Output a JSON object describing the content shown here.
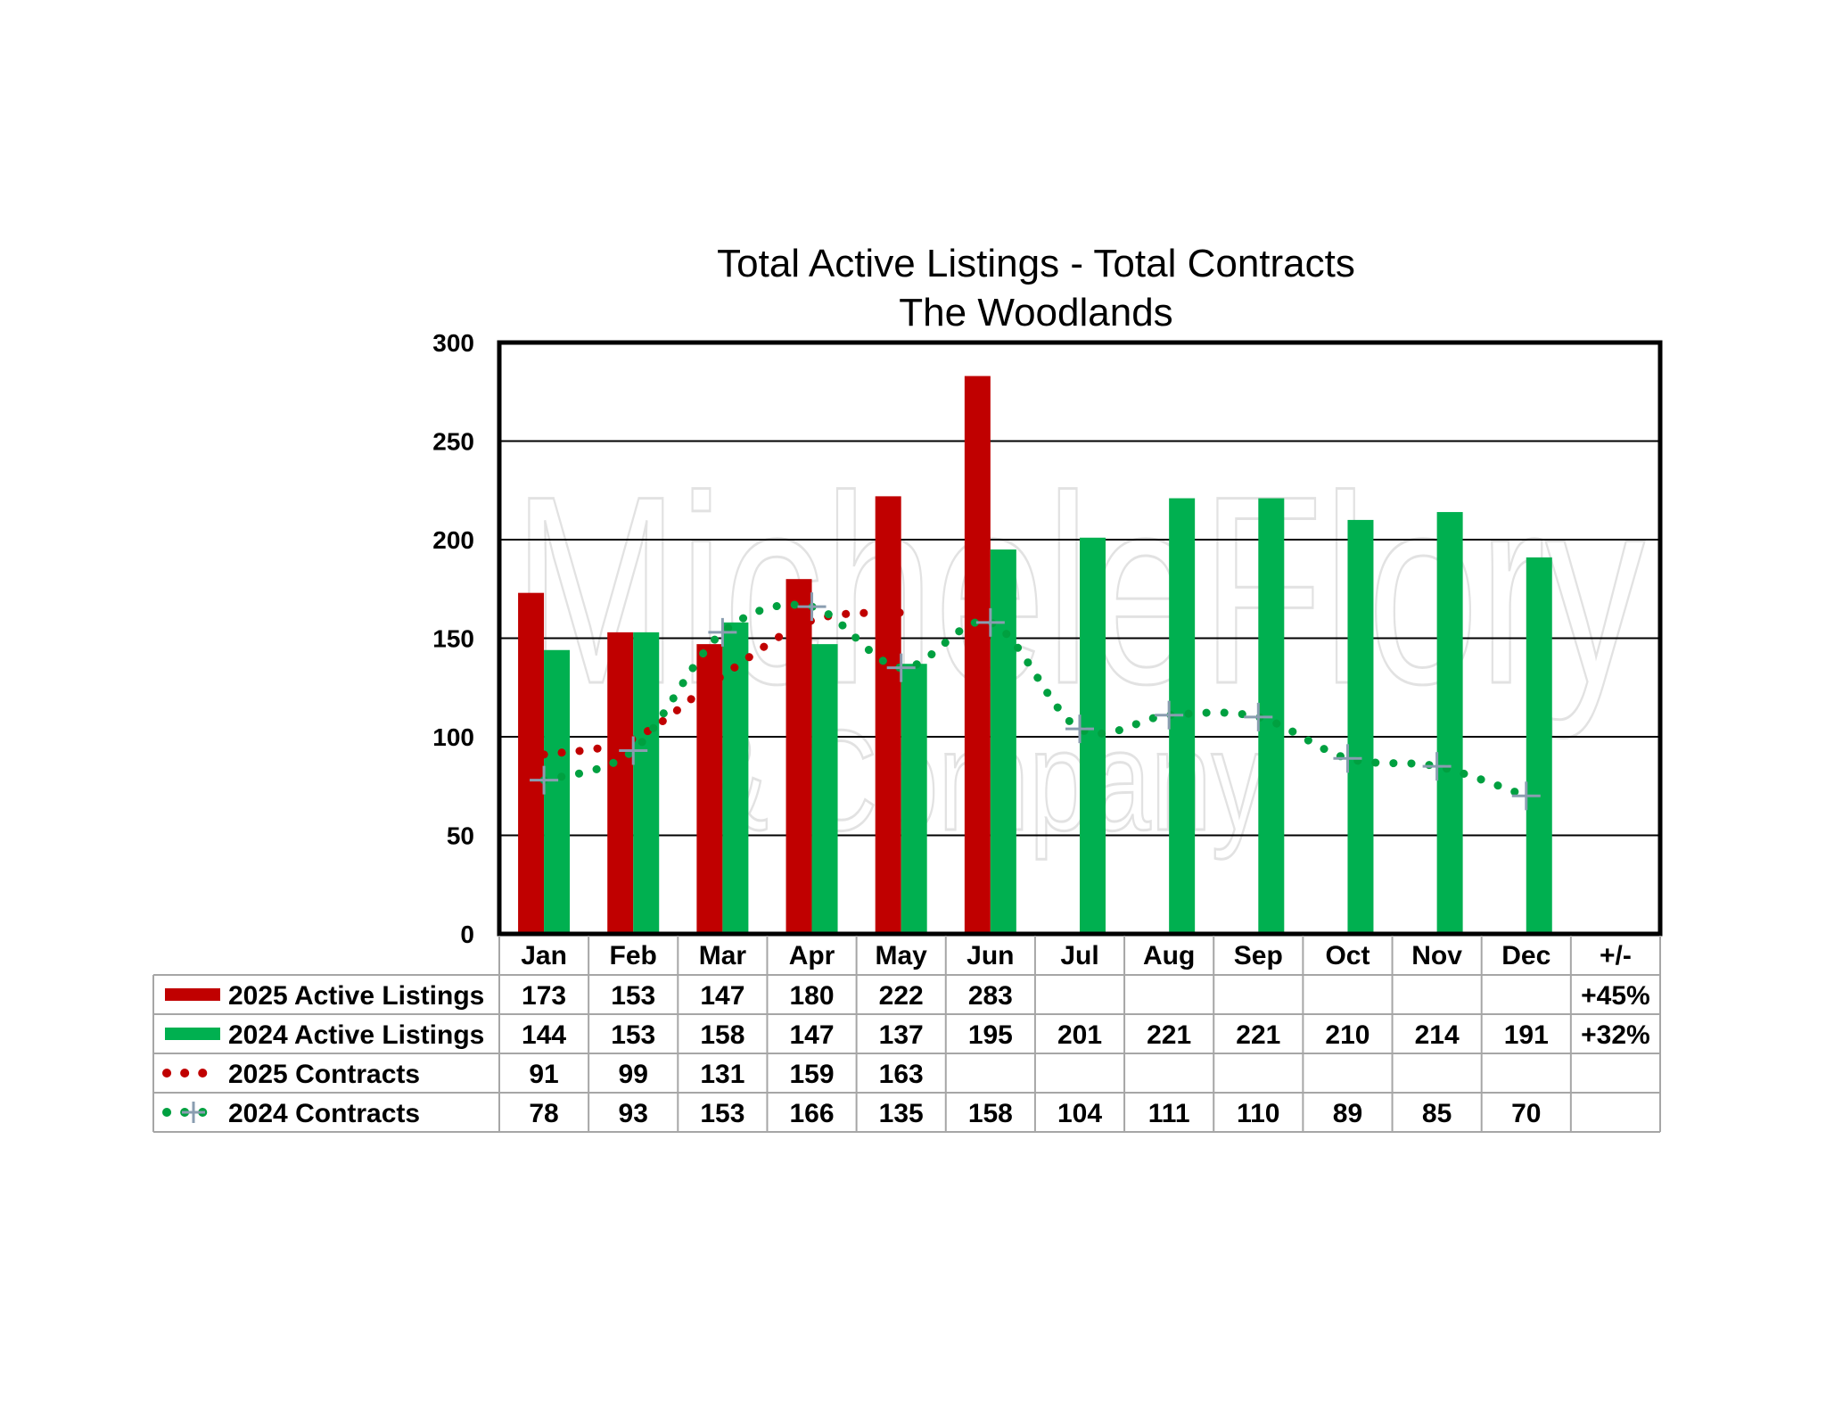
{
  "chart_data": {
    "type": "bar",
    "title": "Total Active Listings - Total Contracts",
    "subtitle": "The Woodlands",
    "categories": [
      "Jan",
      "Feb",
      "Mar",
      "Apr",
      "May",
      "Jun",
      "Jul",
      "Aug",
      "Sep",
      "Oct",
      "Nov",
      "Dec"
    ],
    "extra_column": "+/-",
    "ylim": [
      0,
      300
    ],
    "yticks": [
      0,
      50,
      100,
      150,
      200,
      250,
      300
    ],
    "grid": true,
    "series": [
      {
        "name": "2025 Active Listings",
        "kind": "bar",
        "color": "#c00000",
        "values": [
          173,
          153,
          147,
          180,
          222,
          283,
          null,
          null,
          null,
          null,
          null,
          null
        ],
        "change": "+45%"
      },
      {
        "name": "2024 Active Listings",
        "kind": "bar",
        "color": "#00b050",
        "values": [
          144,
          153,
          158,
          147,
          137,
          195,
          201,
          221,
          221,
          210,
          214,
          191
        ],
        "change": "+32%"
      },
      {
        "name": "2025 Contracts",
        "kind": "line",
        "style": "dotted",
        "color": "#c00000",
        "values": [
          91,
          99,
          131,
          159,
          163,
          null,
          null,
          null,
          null,
          null,
          null,
          null
        ],
        "change": ""
      },
      {
        "name": "2024 Contracts",
        "kind": "line",
        "style": "dotted",
        "marker": "plus",
        "color": "#00a040",
        "values": [
          78,
          93,
          153,
          166,
          135,
          158,
          104,
          111,
          110,
          89,
          85,
          70
        ],
        "change": ""
      }
    ],
    "watermark": {
      "line1": "MicheleFlory",
      "line2": "& Company"
    }
  }
}
